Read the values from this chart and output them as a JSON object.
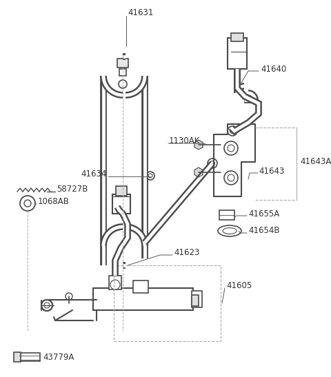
{
  "bg_color": "#ffffff",
  "line_color": "#4a4a4a",
  "dashed_color": "#aaaaaa",
  "figsize": [
    4.8,
    5.47
  ],
  "dpi": 100,
  "xlim": [
    0,
    480
  ],
  "ylim": [
    0,
    547
  ]
}
